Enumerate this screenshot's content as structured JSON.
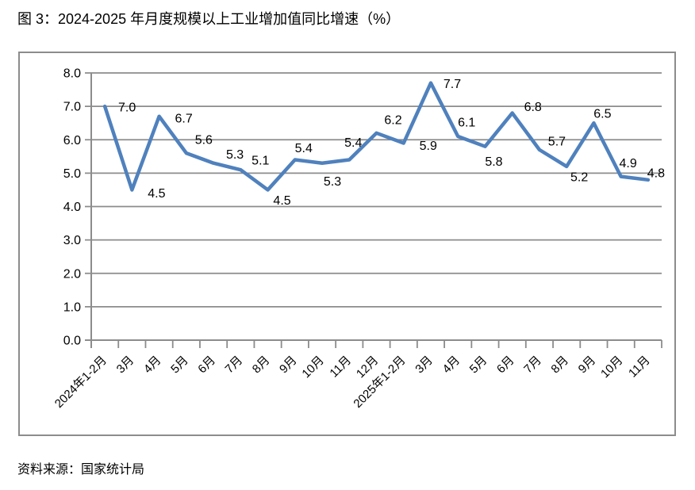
{
  "page": {
    "title": "图 3：2024-2025 年月度规模以上工业增加值同比增速（%）",
    "source": "资料来源：国家统计局"
  },
  "chart_data": {
    "type": "line",
    "title": "图 3：2024-2025 年月度规模以上工业增加值同比增速（%）",
    "source": "资料来源：国家统计局",
    "categories": [
      "2024年1-2月",
      "3月",
      "4月",
      "5月",
      "6月",
      "7月",
      "8月",
      "9月",
      "10月",
      "11月",
      "12月",
      "2025年1-2月",
      "3月",
      "4月",
      "5月",
      "6月",
      "7月",
      "8月",
      "9月",
      "10月",
      "11月"
    ],
    "values": [
      7.0,
      4.5,
      6.7,
      5.6,
      5.3,
      5.1,
      4.5,
      5.4,
      5.3,
      5.4,
      6.2,
      5.9,
      7.7,
      6.1,
      5.8,
      6.8,
      5.7,
      5.2,
      6.5,
      4.9,
      4.8
    ],
    "xlabel": "",
    "ylabel": "",
    "ylim": [
      0,
      8
    ],
    "ytick_step": 1,
    "ytick_format_decimals": 1,
    "grid": true,
    "legend": false,
    "show_data_labels": true,
    "colors": {
      "line": "#4F81BD",
      "grid": "#8C8C8C",
      "axis": "#8C8C8C",
      "frame": "#8C8C8C",
      "text": "#000000"
    }
  }
}
